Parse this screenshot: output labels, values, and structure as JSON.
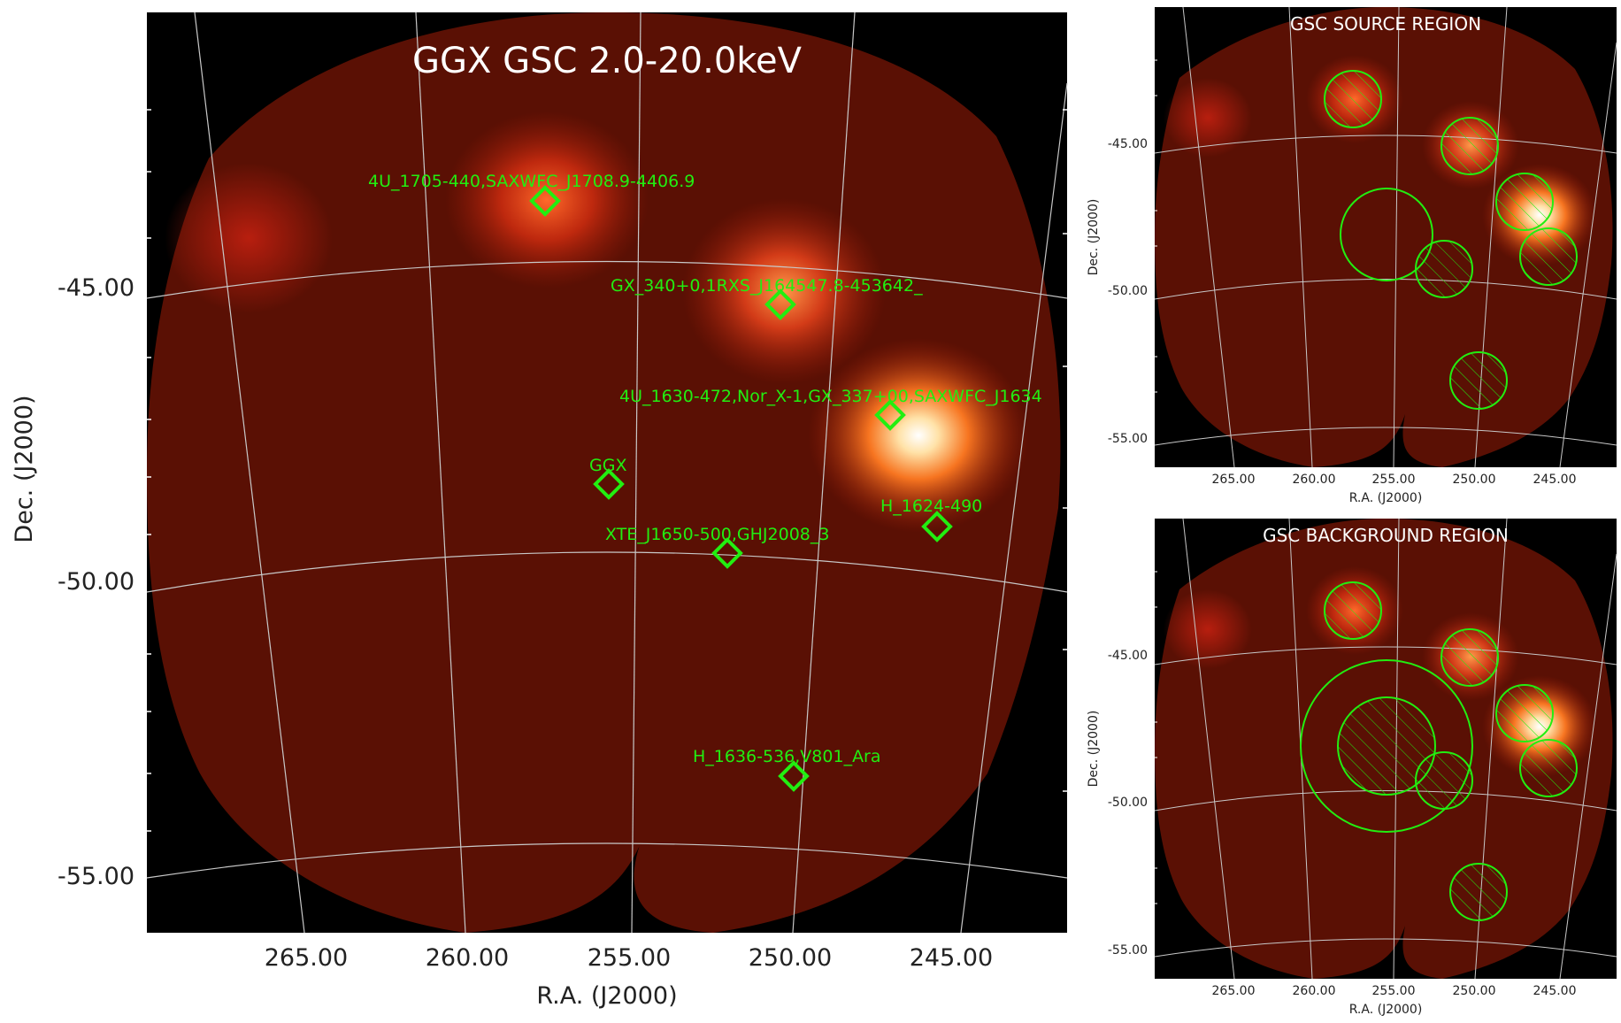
{
  "main": {
    "title": "GGX GSC 2.0-20.0keV",
    "xlabel": "R.A. (J2000)",
    "ylabel": "Dec. (J2000)",
    "xticks": [
      "265.00",
      "260.00",
      "255.00",
      "250.00",
      "245.00"
    ],
    "yticks": [
      "-45.00",
      "-50.00",
      "-55.00"
    ],
    "sources": [
      {
        "label": "4U_1705-440,SAXWFC_J1708.9-4406.9"
      },
      {
        "label": "GX_340+0,1RXS_J164547.8-453642_"
      },
      {
        "label": "4U_1630-472,Nor_X-1,GX_337+00,SAXWFC_J1634"
      },
      {
        "label": "GGX"
      },
      {
        "label": "H_1624-490"
      },
      {
        "label": "XTE_J1650-500,GHJ2008_3"
      },
      {
        "label": "H_1636-536,V801_Ara"
      }
    ]
  },
  "source_panel": {
    "title": "GSC SOURCE REGION",
    "xlabel": "R.A. (J2000)",
    "ylabel": "Dec. (J2000)",
    "xticks": [
      "265.00",
      "260.00",
      "255.00",
      "250.00",
      "245.00"
    ],
    "yticks": [
      "-45.00",
      "-50.00",
      "-55.00"
    ]
  },
  "background_panel": {
    "title": "GSC BACKGROUND REGION",
    "xlabel": "R.A. (J2000)",
    "ylabel": "Dec. (J2000)",
    "xticks": [
      "265.00",
      "260.00",
      "255.00",
      "250.00",
      "245.00"
    ],
    "yticks": [
      "-45.00",
      "-50.00",
      "-55.00"
    ]
  },
  "colors": {
    "region": "#22ee11",
    "grid": "#c8c8c8",
    "sky_bg": "#000000",
    "diffuse": "#5a1004"
  }
}
